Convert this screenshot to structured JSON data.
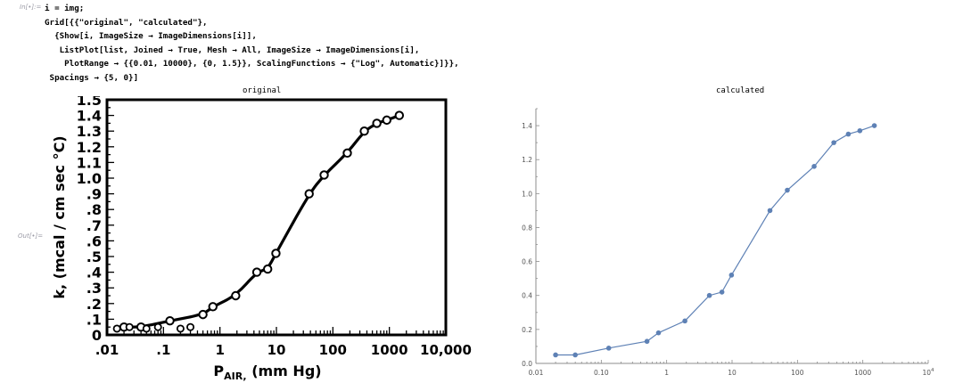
{
  "notebook": {
    "in_label": "In[•]:=",
    "out_label": "Out[•]=",
    "code_lines": [
      "i = img;",
      "Grid[{{\"original\", \"calculated\"},",
      "  {Show[i, ImageSize → ImageDimensions[i]],",
      "   ListPlot[list, Joined → True, Mesh → All, ImageSize → ImageDimensions[i],",
      "    PlotRange → {{0.01, 10000}, {0, 1.5}}, ScalingFunctions → {\"Log\", Automatic}]}},",
      " Spacings → {5, 0}]"
    ]
  },
  "grid": {
    "titles": [
      "original",
      "calculated"
    ]
  },
  "original_plot": {
    "ylabel": "k, (mcal / cm  sec  °C)",
    "xlabel_main": "P",
    "xlabel_sub": "AIR,",
    "xlabel_rest": " (mm  Hg)",
    "xticks": [
      ".01",
      ".1",
      "1",
      "10",
      "100",
      "1000",
      "10,000"
    ],
    "yticks": [
      "0",
      ".1",
      ".2",
      ".3",
      ".4",
      ".5",
      ".6",
      ".7",
      ".8",
      ".9",
      "1.0",
      "1.1",
      "1.2",
      "1.3",
      "1.4",
      "1.5"
    ]
  },
  "chart_data": [
    {
      "type": "scatter",
      "title": "original",
      "xscale": "log",
      "xlim": [
        0.01,
        10000
      ],
      "ylim": [
        0,
        1.5
      ],
      "x": [
        0.02,
        0.04,
        0.13,
        0.5,
        0.75,
        1.9,
        4.5,
        7.0,
        9.8,
        38,
        70,
        180,
        360,
        600,
        900,
        1500
      ],
      "y": [
        0.05,
        0.05,
        0.09,
        0.13,
        0.18,
        0.25,
        0.4,
        0.42,
        0.52,
        0.9,
        1.02,
        1.16,
        1.3,
        1.35,
        1.37,
        1.4
      ],
      "xlabel": "PAIR, (mm Hg)",
      "ylabel": "k, (mcal / cm sec °C)",
      "grid": false
    },
    {
      "type": "line",
      "title": "calculated",
      "xscale": "log",
      "xlim": [
        0.01,
        10000
      ],
      "ylim": [
        0,
        1.5
      ],
      "xticks": [
        "0.01",
        "0.10",
        "1",
        "10",
        "100",
        "1000",
        "10⁴"
      ],
      "yticks": [
        "0.0",
        "0.2",
        "0.4",
        "0.6",
        "0.8",
        "1.0",
        "1.2",
        "1.4"
      ],
      "x": [
        0.02,
        0.04,
        0.13,
        0.5,
        0.75,
        1.9,
        4.5,
        7.0,
        9.8,
        38,
        70,
        180,
        360,
        600,
        900,
        1500
      ],
      "y": [
        0.05,
        0.05,
        0.09,
        0.13,
        0.18,
        0.25,
        0.4,
        0.42,
        0.52,
        0.9,
        1.02,
        1.16,
        1.3,
        1.35,
        1.37,
        1.4
      ],
      "color": "#5e81b5",
      "markers": true,
      "grid": false
    }
  ]
}
